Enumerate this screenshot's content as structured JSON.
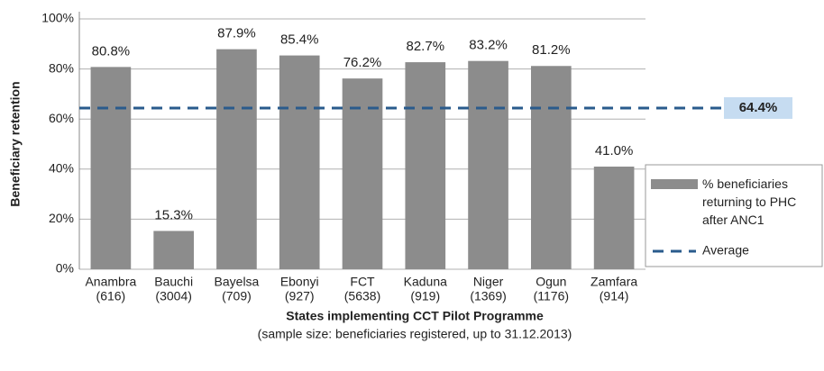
{
  "chart_data": {
    "type": "bar",
    "x_label": "States implementing CCT Pilot Programme",
    "x_sublabel": "(sample size: beneficiaries registered, up to 31.12.2013)",
    "y_label": "Beneficiary retention",
    "categories": [
      "Anambra",
      "Bauchi",
      "Bayelsa",
      "Ebonyi",
      "FCT",
      "Kaduna",
      "Niger",
      "Ogun",
      "Zamfara"
    ],
    "category_sublabels": [
      "(616)",
      "(3004)",
      "(709)",
      "(927)",
      "(5638)",
      "(919)",
      "(1369)",
      "(1176)",
      "(914)"
    ],
    "series": [
      {
        "name": "% beneficiaries returning to PHC after ANC1",
        "color": "#8c8c8c",
        "values": [
          80.8,
          15.3,
          87.9,
          85.4,
          76.2,
          82.7,
          83.2,
          81.2,
          41.0
        ],
        "value_labels": [
          "80.8%",
          "15.3%",
          "87.9%",
          "85.4%",
          "76.2%",
          "82.7%",
          "83.2%",
          "81.2%",
          "41.0%"
        ]
      }
    ],
    "average": {
      "name": "Average",
      "value": 64.4,
      "label": "64.4%",
      "color": "#2a5b8c"
    },
    "ylim": [
      0,
      100
    ],
    "yticks": [
      {
        "value": 0,
        "label": "0%"
      },
      {
        "value": 20,
        "label": "20%"
      },
      {
        "value": 40,
        "label": "40%"
      },
      {
        "value": 60,
        "label": "60%"
      },
      {
        "value": 80,
        "label": "80%"
      },
      {
        "value": 100,
        "label": "100%"
      }
    ],
    "grid": true
  }
}
